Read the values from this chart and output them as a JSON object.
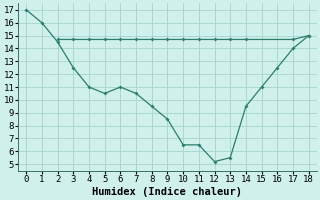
{
  "line1_x": [
    0,
    1,
    2,
    3,
    4,
    5,
    6,
    7,
    8,
    9,
    10,
    11,
    12,
    13,
    14,
    15,
    16,
    17,
    18
  ],
  "line1_y": [
    17,
    16,
    14.5,
    12.5,
    11,
    10.5,
    11,
    10.5,
    9.5,
    8.5,
    6.5,
    6.5,
    5.2,
    5.5,
    9.5,
    11,
    12.5,
    14,
    15
  ],
  "line2_x": [
    2,
    3,
    4,
    5,
    6,
    7,
    8,
    9,
    10,
    11,
    12,
    13,
    14,
    17,
    18
  ],
  "line2_y": [
    14.7,
    14.7,
    14.7,
    14.7,
    14.7,
    14.7,
    14.7,
    14.7,
    14.7,
    14.7,
    14.7,
    14.7,
    14.7,
    14.7,
    15
  ],
  "color": "#2e7d6e",
  "bg_color": "#cff0eb",
  "grid_color": "#aad8d3",
  "xlabel": "Humidex (Indice chaleur)",
  "ylim": [
    4.5,
    17.5
  ],
  "xlim": [
    -0.5,
    18.5
  ],
  "xticks": [
    0,
    1,
    2,
    3,
    4,
    5,
    6,
    7,
    8,
    9,
    10,
    11,
    12,
    13,
    14,
    15,
    16,
    17,
    18
  ],
  "yticks": [
    5,
    6,
    7,
    8,
    9,
    10,
    11,
    12,
    13,
    14,
    15,
    16,
    17
  ],
  "tick_fontsize": 6.5,
  "xlabel_fontsize": 7.5
}
